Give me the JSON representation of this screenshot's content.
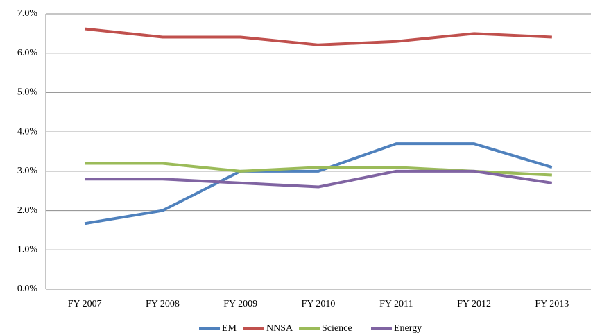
{
  "chart_data": {
    "type": "line",
    "categories": [
      "FY 2007",
      "FY 2008",
      "FY 2009",
      "FY 2010",
      "FY 2011",
      "FY 2012",
      "FY 2013"
    ],
    "series": [
      {
        "name": "EM",
        "color": "#4f81bd",
        "values": [
          1.67,
          2.0,
          3.0,
          3.0,
          3.7,
          3.7,
          3.1
        ]
      },
      {
        "name": "NNSA",
        "color": "#c0504d",
        "values": [
          6.62,
          6.41,
          6.41,
          6.21,
          6.3,
          6.5,
          6.41
        ]
      },
      {
        "name": "Science",
        "color": "#9bbb59",
        "values": [
          3.2,
          3.2,
          3.0,
          3.1,
          3.1,
          3.0,
          2.9
        ]
      },
      {
        "name": "Energy",
        "color": "#8064a2",
        "values": [
          2.8,
          2.8,
          2.7,
          2.6,
          3.0,
          3.0,
          2.7
        ]
      }
    ],
    "ylim": [
      0,
      7
    ],
    "yticks": [
      {
        "value": 0,
        "label": "0.0%"
      },
      {
        "value": 1,
        "label": "1.0%"
      },
      {
        "value": 2,
        "label": "2.0%"
      },
      {
        "value": 3,
        "label": "3.0%"
      },
      {
        "value": 4,
        "label": "4.0%"
      },
      {
        "value": 5,
        "label": "5.0%"
      },
      {
        "value": 6,
        "label": "6.0%"
      },
      {
        "value": 7,
        "label": "7.0%"
      }
    ],
    "grid": true,
    "legend": "bottom"
  }
}
